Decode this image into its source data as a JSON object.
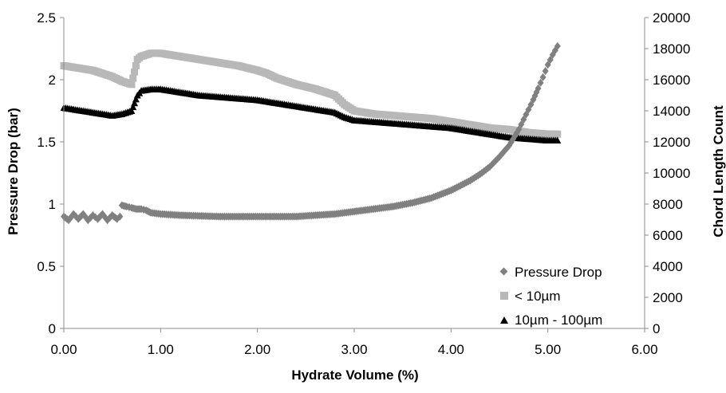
{
  "chart_data": {
    "type": "scatter",
    "xlabel": "Hydrate Volume (%)",
    "ylabel": "Pressure Drop (bar)",
    "y2label": "Chord Length Count",
    "xlim": [
      0,
      6
    ],
    "ylim": [
      0,
      2.5
    ],
    "y2lim": [
      0,
      20000
    ],
    "x_ticks": [
      "0.00",
      "1.00",
      "2.00",
      "3.00",
      "4.00",
      "5.00",
      "6.00"
    ],
    "y_ticks": [
      "0",
      "0.5",
      "1",
      "1.5",
      "2",
      "2.5"
    ],
    "y2_ticks": [
      "0",
      "2000",
      "4000",
      "6000",
      "8000",
      "10000",
      "12000",
      "14000",
      "16000",
      "18000",
      "20000"
    ],
    "grid": false,
    "legend_position": "bottom-right",
    "series": [
      {
        "name": "Pressure Drop",
        "axis": "left",
        "marker": "diamond",
        "color": "#808080",
        "x": [
          0.0,
          0.05,
          0.1,
          0.15,
          0.2,
          0.25,
          0.3,
          0.35,
          0.4,
          0.45,
          0.5,
          0.55,
          0.58,
          0.6,
          0.65,
          0.7,
          0.75,
          0.8,
          0.85,
          0.9,
          1.0,
          1.2,
          1.4,
          1.6,
          1.8,
          2.0,
          2.2,
          2.4,
          2.6,
          2.8,
          3.0,
          3.2,
          3.4,
          3.6,
          3.8,
          4.0,
          4.1,
          4.2,
          4.3,
          4.4,
          4.5,
          4.6,
          4.7,
          4.75,
          4.8,
          4.85,
          4.9,
          4.95,
          5.0,
          5.05,
          5.1
        ],
        "y": [
          0.9,
          0.87,
          0.92,
          0.88,
          0.92,
          0.87,
          0.91,
          0.88,
          0.92,
          0.87,
          0.91,
          0.88,
          0.9,
          0.99,
          0.98,
          0.97,
          0.96,
          0.96,
          0.95,
          0.93,
          0.92,
          0.91,
          0.905,
          0.9,
          0.9,
          0.9,
          0.9,
          0.9,
          0.91,
          0.92,
          0.94,
          0.96,
          0.98,
          1.01,
          1.05,
          1.11,
          1.15,
          1.19,
          1.24,
          1.3,
          1.38,
          1.47,
          1.6,
          1.68,
          1.76,
          1.84,
          1.93,
          2.02,
          2.12,
          2.2,
          2.27
        ]
      },
      {
        "name": "< 10µm",
        "axis": "right",
        "marker": "square",
        "color": "#b8b8b8",
        "x": [
          0.0,
          0.1,
          0.2,
          0.3,
          0.4,
          0.5,
          0.6,
          0.7,
          0.73,
          0.76,
          0.8,
          0.9,
          1.0,
          1.1,
          1.2,
          1.4,
          1.6,
          1.8,
          2.0,
          2.1,
          2.2,
          2.4,
          2.6,
          2.8,
          2.9,
          3.0,
          3.2,
          3.4,
          3.6,
          3.8,
          4.0,
          4.2,
          4.4,
          4.6,
          4.8,
          5.0,
          5.1
        ],
        "y": [
          16900,
          16800,
          16700,
          16600,
          16400,
          16200,
          15900,
          15700,
          16500,
          17300,
          17500,
          17700,
          17700,
          17600,
          17500,
          17300,
          17100,
          16900,
          16600,
          16400,
          16100,
          15700,
          15400,
          15000,
          14400,
          14000,
          13800,
          13700,
          13600,
          13500,
          13300,
          13100,
          12900,
          12800,
          12600,
          12500,
          12500
        ]
      },
      {
        "name": "10µm - 100µm",
        "axis": "right",
        "marker": "triangle",
        "color": "#000000",
        "x": [
          0.0,
          0.1,
          0.2,
          0.3,
          0.4,
          0.5,
          0.6,
          0.7,
          0.73,
          0.76,
          0.8,
          0.9,
          1.0,
          1.1,
          1.2,
          1.4,
          1.6,
          1.8,
          2.0,
          2.2,
          2.4,
          2.6,
          2.8,
          2.9,
          3.0,
          3.2,
          3.4,
          3.6,
          3.8,
          4.0,
          4.2,
          4.4,
          4.6,
          4.8,
          5.0,
          5.1
        ],
        "y": [
          14200,
          14100,
          14000,
          13900,
          13800,
          13700,
          13800,
          14000,
          14500,
          15000,
          15300,
          15400,
          15400,
          15300,
          15200,
          15000,
          14900,
          14800,
          14700,
          14500,
          14300,
          14100,
          13900,
          13600,
          13400,
          13300,
          13200,
          13100,
          13000,
          12900,
          12700,
          12500,
          12300,
          12200,
          12100,
          12100
        ]
      }
    ]
  }
}
